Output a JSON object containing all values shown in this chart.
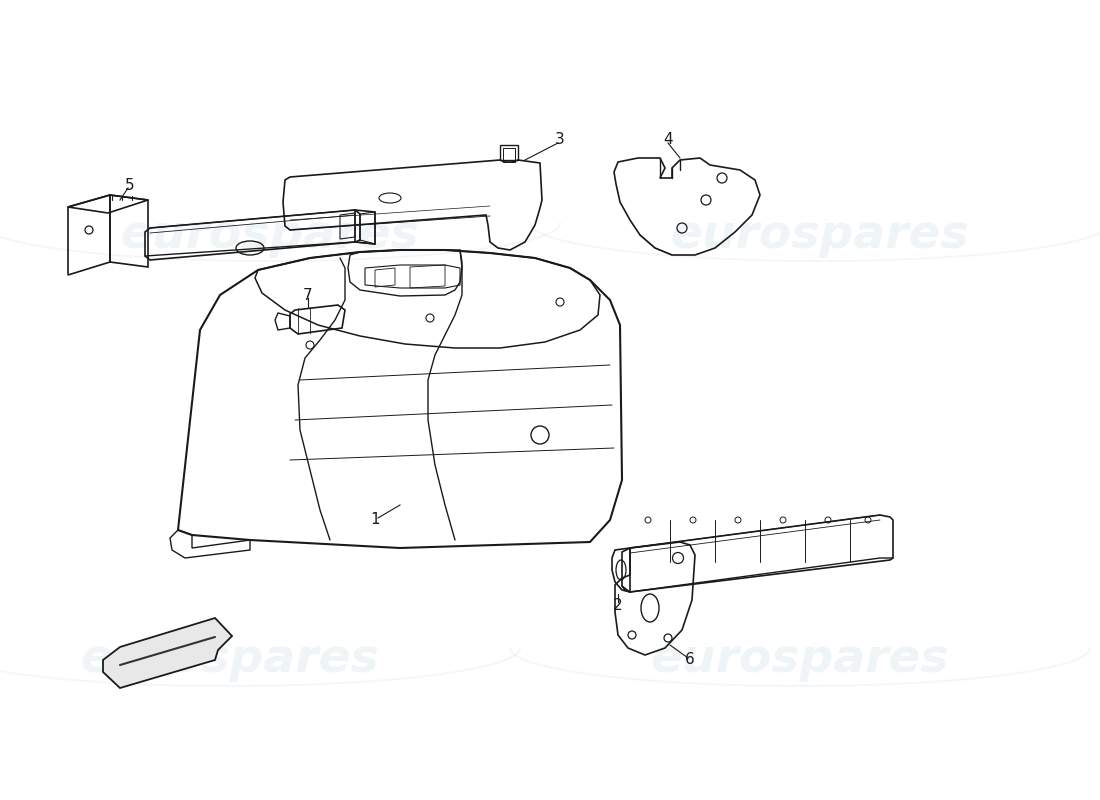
{
  "background_color": "#ffffff",
  "line_color": "#1a1a1a",
  "watermark_color": "#b0c8d8",
  "watermark_alpha": 0.2,
  "watermark_text": "eurospares",
  "fig_width": 11.0,
  "fig_height": 8.0,
  "dpi": 100
}
